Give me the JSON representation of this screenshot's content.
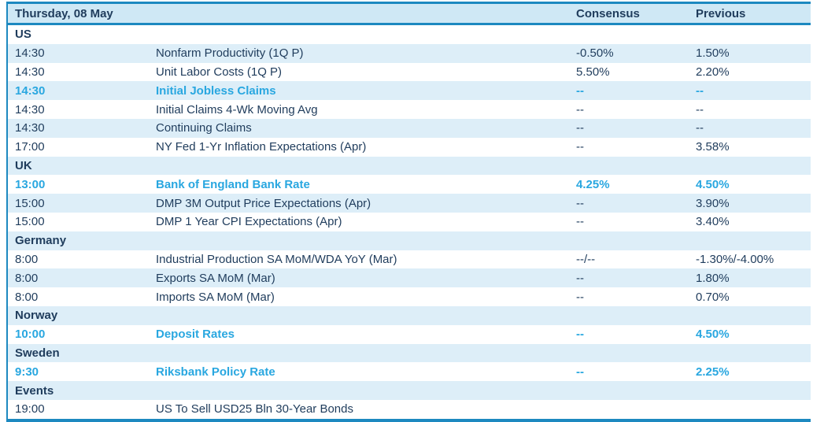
{
  "header": {
    "date_label": "Thursday, 08 May",
    "consensus_header": "Consensus",
    "previous_header": "Previous"
  },
  "colors": {
    "border_teal": "#1d89c0",
    "header_bg": "#cfe8f5",
    "stripe_bg": "#ddeef8",
    "text_navy": "#1f3c5c",
    "highlight_cyan": "#29a7e0"
  },
  "rows": [
    {
      "type": "section",
      "label": "US"
    },
    {
      "type": "event",
      "time": "14:30",
      "event": "Nonfarm Productivity (1Q P)",
      "consensus": "-0.50%",
      "previous": "1.50%",
      "highlight": false
    },
    {
      "type": "event",
      "time": "14:30",
      "event": "Unit Labor Costs (1Q P)",
      "consensus": "5.50%",
      "previous": "2.20%",
      "highlight": false
    },
    {
      "type": "event",
      "time": "14:30",
      "event": "Initial Jobless Claims",
      "consensus": "--",
      "previous": "--",
      "highlight": true
    },
    {
      "type": "event",
      "time": "14:30",
      "event": "Initial Claims 4-Wk Moving Avg",
      "consensus": "--",
      "previous": "--",
      "highlight": false
    },
    {
      "type": "event",
      "time": "14:30",
      "event": "Continuing Claims",
      "consensus": "--",
      "previous": "--",
      "highlight": false
    },
    {
      "type": "event",
      "time": "17:00",
      "event": "NY Fed 1-Yr Inflation Expectations (Apr)",
      "consensus": "--",
      "previous": "3.58%",
      "highlight": false
    },
    {
      "type": "section",
      "label": "UK"
    },
    {
      "type": "event",
      "time": "13:00",
      "event": "Bank of England Bank Rate",
      "consensus": "4.25%",
      "previous": "4.50%",
      "highlight": true
    },
    {
      "type": "event",
      "time": "15:00",
      "event": "DMP 3M Output Price Expectations (Apr)",
      "consensus": "--",
      "previous": "3.90%",
      "highlight": false
    },
    {
      "type": "event",
      "time": "15:00",
      "event": "DMP 1 Year CPI Expectations (Apr)",
      "consensus": "--",
      "previous": "3.40%",
      "highlight": false
    },
    {
      "type": "section",
      "label": "Germany"
    },
    {
      "type": "event",
      "time": "8:00",
      "event": "Industrial Production SA MoM/WDA YoY (Mar)",
      "consensus": "--/--",
      "previous": "-1.30%/-4.00%",
      "highlight": false
    },
    {
      "type": "event",
      "time": "8:00",
      "event": "Exports SA MoM (Mar)",
      "consensus": "--",
      "previous": "1.80%",
      "highlight": false
    },
    {
      "type": "event",
      "time": "8:00",
      "event": "Imports SA MoM (Mar)",
      "consensus": "--",
      "previous": "0.70%",
      "highlight": false
    },
    {
      "type": "section",
      "label": "Norway"
    },
    {
      "type": "event",
      "time": "10:00",
      "event": "Deposit Rates",
      "consensus": "--",
      "previous": "4.50%",
      "highlight": true
    },
    {
      "type": "section",
      "label": "Sweden"
    },
    {
      "type": "event",
      "time": "9:30",
      "event": "Riksbank Policy Rate",
      "consensus": "--",
      "previous": "2.25%",
      "highlight": true
    },
    {
      "type": "section",
      "label": "Events"
    },
    {
      "type": "event",
      "time": "19:00",
      "event": "US To Sell USD25 Bln 30-Year Bonds",
      "consensus": "",
      "previous": "",
      "highlight": false
    }
  ]
}
